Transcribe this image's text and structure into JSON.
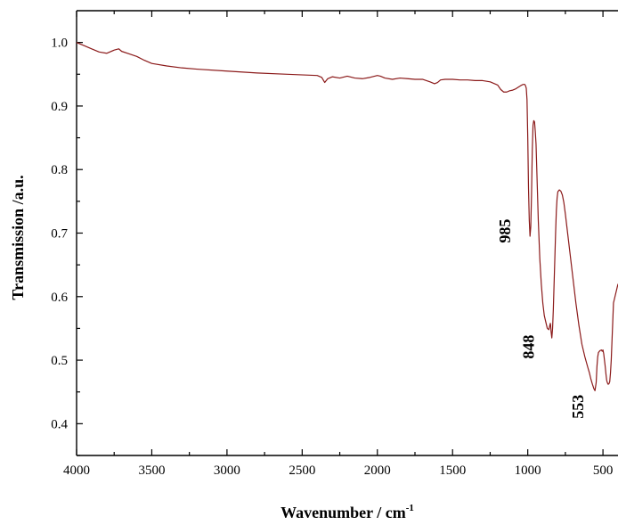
{
  "chart_data": {
    "type": "line",
    "xlabel": "Wavenumber / cm",
    "xlabel_sup": "-1",
    "ylabel": "Transmission /a.u.",
    "xlim": [
      4000,
      400
    ],
    "ylim": [
      0.35,
      1.05
    ],
    "x_ticks": [
      {
        "value": 4000,
        "label": "4000"
      },
      {
        "value": 3500,
        "label": "3500"
      },
      {
        "value": 3000,
        "label": "3000"
      },
      {
        "value": 2500,
        "label": "2500"
      },
      {
        "value": 2000,
        "label": "2000"
      },
      {
        "value": 1500,
        "label": "1500"
      },
      {
        "value": 1000,
        "label": "1000"
      },
      {
        "value": 500,
        "label": "500"
      }
    ],
    "y_ticks": [
      {
        "value": 0.4,
        "label": "0.4"
      },
      {
        "value": 0.5,
        "label": "0.5"
      },
      {
        "value": 0.6,
        "label": "0.6"
      },
      {
        "value": 0.7,
        "label": "0.7"
      },
      {
        "value": 0.8,
        "label": "0.8"
      },
      {
        "value": 0.9,
        "label": "0.9"
      },
      {
        "value": 1.0,
        "label": "1.0"
      }
    ],
    "grid": false,
    "series": [
      {
        "color": "#8b1a1a",
        "x": [
          4000,
          3950,
          3900,
          3850,
          3800,
          3750,
          3720,
          3700,
          3650,
          3600,
          3550,
          3500,
          3400,
          3300,
          3200,
          3000,
          2800,
          2600,
          2400,
          2370,
          2350,
          2330,
          2300,
          2250,
          2200,
          2150,
          2100,
          2050,
          2000,
          1980,
          1950,
          1900,
          1850,
          1800,
          1750,
          1700,
          1650,
          1620,
          1600,
          1580,
          1550,
          1500,
          1450,
          1400,
          1350,
          1300,
          1250,
          1200,
          1180,
          1160,
          1140,
          1120,
          1100,
          1080,
          1060,
          1040,
          1030,
          1020,
          1015,
          1010,
          1005,
          1000,
          995,
          990,
          985,
          980,
          975,
          970,
          965,
          960,
          955,
          950,
          945,
          940,
          930,
          920,
          910,
          900,
          890,
          880,
          870,
          860,
          855,
          850,
          848,
          845,
          840,
          835,
          830,
          825,
          820,
          815,
          810,
          805,
          800,
          790,
          780,
          770,
          760,
          750,
          740,
          720,
          700,
          680,
          660,
          640,
          620,
          600,
          590,
          580,
          570,
          560,
          553,
          545,
          540,
          535,
          530,
          520,
          510,
          505,
          500,
          495,
          490,
          485,
          480,
          475,
          470,
          465,
          460,
          455,
          450,
          445,
          440,
          435,
          430,
          420,
          410,
          400
        ],
        "y": [
          1.0,
          0.995,
          0.99,
          0.985,
          0.983,
          0.988,
          0.99,
          0.986,
          0.982,
          0.978,
          0.972,
          0.967,
          0.963,
          0.96,
          0.958,
          0.955,
          0.952,
          0.95,
          0.948,
          0.945,
          0.937,
          0.943,
          0.946,
          0.944,
          0.947,
          0.944,
          0.943,
          0.945,
          0.948,
          0.947,
          0.944,
          0.942,
          0.944,
          0.943,
          0.942,
          0.942,
          0.938,
          0.935,
          0.937,
          0.941,
          0.942,
          0.942,
          0.941,
          0.941,
          0.94,
          0.94,
          0.938,
          0.933,
          0.926,
          0.922,
          0.922,
          0.924,
          0.925,
          0.927,
          0.93,
          0.933,
          0.934,
          0.934,
          0.932,
          0.928,
          0.91,
          0.85,
          0.77,
          0.72,
          0.695,
          0.71,
          0.76,
          0.83,
          0.87,
          0.877,
          0.875,
          0.86,
          0.84,
          0.8,
          0.72,
          0.66,
          0.62,
          0.59,
          0.57,
          0.56,
          0.55,
          0.548,
          0.553,
          0.558,
          0.555,
          0.545,
          0.535,
          0.55,
          0.58,
          0.62,
          0.66,
          0.7,
          0.735,
          0.755,
          0.765,
          0.768,
          0.766,
          0.76,
          0.748,
          0.73,
          0.71,
          0.67,
          0.63,
          0.59,
          0.555,
          0.525,
          0.505,
          0.488,
          0.48,
          0.47,
          0.462,
          0.455,
          0.452,
          0.465,
          0.49,
          0.505,
          0.512,
          0.515,
          0.516,
          0.514,
          0.516,
          0.51,
          0.5,
          0.49,
          0.478,
          0.468,
          0.464,
          0.462,
          0.463,
          0.466,
          0.48,
          0.5,
          0.53,
          0.56,
          0.59,
          0.6,
          0.61,
          0.62
        ]
      }
    ],
    "annotations": [
      {
        "text": "985",
        "x": 985,
        "y": 0.695
      },
      {
        "text": "848",
        "x": 848,
        "y": 0.535
      },
      {
        "text": "553",
        "x": 553,
        "y": 0.452
      }
    ]
  }
}
